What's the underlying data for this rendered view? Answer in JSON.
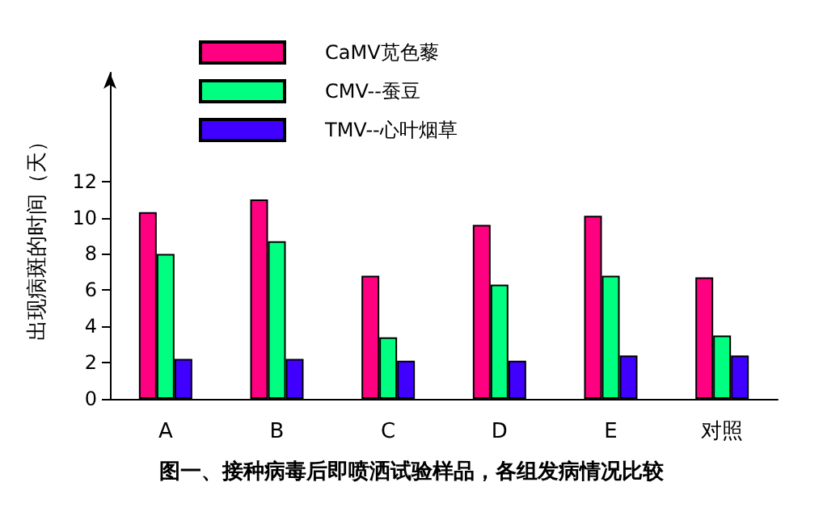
{
  "chart_data": {
    "type": "bar",
    "title": "图一、接种病毒后即喷洒试验样品，各组发病情况比较",
    "ylabel": "出现病斑的时间（天）",
    "categories": [
      "A",
      "B",
      "C",
      "D",
      "E",
      "对照"
    ],
    "series": [
      {
        "name": "CaMV苋色藜",
        "color": "#ff0080",
        "values": [
          10.3,
          11.0,
          6.8,
          9.6,
          10.1,
          6.7
        ]
      },
      {
        "name": "CMV--蚕豆",
        "color": "#00ff80",
        "values": [
          8.0,
          8.7,
          3.4,
          6.3,
          6.8,
          3.5
        ]
      },
      {
        "name": "TMV--心叶烟草",
        "color": "#4000ff",
        "values": [
          2.2,
          2.2,
          2.1,
          2.1,
          2.4,
          2.4
        ]
      }
    ],
    "ylim": [
      0,
      18
    ],
    "yticks": [
      0,
      2,
      4,
      6,
      8,
      10,
      12
    ],
    "grid": false,
    "legend": "top"
  }
}
